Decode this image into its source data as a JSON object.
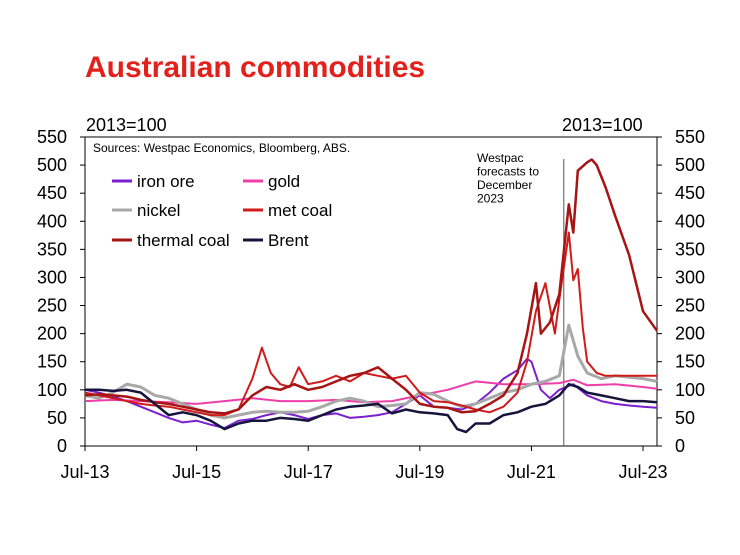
{
  "chart_data": {
    "type": "line",
    "title": "Australian commodities",
    "left_axis_label": "2013=100",
    "right_axis_label": "2013=100",
    "source": "Sources: Westpac Economics, Bloomberg, ABS.",
    "annotation": [
      "Westpac",
      "forecasts to",
      "December",
      "2023"
    ],
    "forecast_start": 2022.08,
    "ylim": [
      0,
      550
    ],
    "yticks": [
      0,
      50,
      100,
      150,
      200,
      250,
      300,
      350,
      400,
      450,
      500,
      550
    ],
    "xlim": [
      2013.5,
      2023.75
    ],
    "xticks": [
      {
        "label": "Jul-13",
        "value": 2013.5
      },
      {
        "label": "Jul-15",
        "value": 2015.5
      },
      {
        "label": "Jul-17",
        "value": 2017.5
      },
      {
        "label": "Jul-19",
        "value": 2019.5
      },
      {
        "label": "Jul-21",
        "value": 2021.5
      },
      {
        "label": "Jul-23",
        "value": 2023.5
      }
    ],
    "grid": false,
    "legend_position": "top-left",
    "series": [
      {
        "name": "iron ore",
        "color": "#7b1fd0",
        "legend_col": 0,
        "legend_row": 0,
        "width": 2,
        "points": [
          [
            2013.5,
            100
          ],
          [
            2013.75,
            95
          ],
          [
            2014.0,
            88
          ],
          [
            2014.25,
            80
          ],
          [
            2014.5,
            70
          ],
          [
            2014.75,
            60
          ],
          [
            2015.0,
            50
          ],
          [
            2015.25,
            42
          ],
          [
            2015.5,
            45
          ],
          [
            2015.75,
            38
          ],
          [
            2016.0,
            32
          ],
          [
            2016.25,
            45
          ],
          [
            2016.5,
            48
          ],
          [
            2016.75,
            55
          ],
          [
            2017.0,
            60
          ],
          [
            2017.25,
            55
          ],
          [
            2017.5,
            48
          ],
          [
            2017.75,
            55
          ],
          [
            2018.0,
            58
          ],
          [
            2018.25,
            50
          ],
          [
            2018.5,
            52
          ],
          [
            2018.75,
            55
          ],
          [
            2019.0,
            60
          ],
          [
            2019.25,
            75
          ],
          [
            2019.5,
            90
          ],
          [
            2019.75,
            70
          ],
          [
            2020.0,
            68
          ],
          [
            2020.25,
            65
          ],
          [
            2020.5,
            75
          ],
          [
            2020.75,
            95
          ],
          [
            2021.0,
            120
          ],
          [
            2021.25,
            135
          ],
          [
            2021.42,
            155
          ],
          [
            2021.5,
            150
          ],
          [
            2021.67,
            100
          ],
          [
            2021.83,
            85
          ],
          [
            2022.0,
            100
          ],
          [
            2022.25,
            110
          ],
          [
            2022.5,
            90
          ],
          [
            2022.75,
            80
          ],
          [
            2023.0,
            75
          ],
          [
            2023.25,
            72
          ],
          [
            2023.5,
            70
          ],
          [
            2023.75,
            68
          ]
        ]
      },
      {
        "name": "gold",
        "color": "#ee3ea8",
        "legend_col": 1,
        "legend_row": 0,
        "width": 2,
        "points": [
          [
            2013.5,
            80
          ],
          [
            2014.0,
            82
          ],
          [
            2014.5,
            80
          ],
          [
            2015.0,
            78
          ],
          [
            2015.5,
            75
          ],
          [
            2016.0,
            80
          ],
          [
            2016.5,
            85
          ],
          [
            2017.0,
            80
          ],
          [
            2017.5,
            80
          ],
          [
            2018.0,
            82
          ],
          [
            2018.5,
            78
          ],
          [
            2019.0,
            80
          ],
          [
            2019.5,
            90
          ],
          [
            2020.0,
            100
          ],
          [
            2020.5,
            115
          ],
          [
            2021.0,
            110
          ],
          [
            2021.5,
            110
          ],
          [
            2022.0,
            112
          ],
          [
            2022.25,
            118
          ],
          [
            2022.5,
            108
          ],
          [
            2023.0,
            110
          ],
          [
            2023.5,
            105
          ],
          [
            2023.75,
            102
          ]
        ]
      },
      {
        "name": "nickel",
        "color": "#a8a8a8",
        "legend_col": 0,
        "legend_row": 1,
        "width": 3,
        "points": [
          [
            2013.5,
            90
          ],
          [
            2013.75,
            85
          ],
          [
            2014.0,
            95
          ],
          [
            2014.25,
            110
          ],
          [
            2014.5,
            105
          ],
          [
            2014.75,
            90
          ],
          [
            2015.0,
            85
          ],
          [
            2015.25,
            75
          ],
          [
            2015.5,
            65
          ],
          [
            2015.75,
            55
          ],
          [
            2016.0,
            50
          ],
          [
            2016.25,
            55
          ],
          [
            2016.5,
            60
          ],
          [
            2016.75,
            62
          ],
          [
            2017.0,
            60
          ],
          [
            2017.25,
            60
          ],
          [
            2017.5,
            62
          ],
          [
            2017.75,
            70
          ],
          [
            2018.0,
            80
          ],
          [
            2018.25,
            85
          ],
          [
            2018.5,
            80
          ],
          [
            2018.75,
            70
          ],
          [
            2019.0,
            72
          ],
          [
            2019.25,
            75
          ],
          [
            2019.5,
            95
          ],
          [
            2019.75,
            92
          ],
          [
            2020.0,
            80
          ],
          [
            2020.25,
            70
          ],
          [
            2020.5,
            75
          ],
          [
            2020.75,
            85
          ],
          [
            2021.0,
            95
          ],
          [
            2021.25,
            100
          ],
          [
            2021.5,
            110
          ],
          [
            2021.75,
            115
          ],
          [
            2022.0,
            125
          ],
          [
            2022.17,
            215
          ],
          [
            2022.33,
            160
          ],
          [
            2022.5,
            130
          ],
          [
            2022.75,
            120
          ],
          [
            2023.0,
            125
          ],
          [
            2023.5,
            120
          ],
          [
            2023.75,
            115
          ]
        ]
      },
      {
        "name": "met coal",
        "color": "#d11b1b",
        "legend_col": 1,
        "legend_row": 1,
        "width": 2,
        "points": [
          [
            2013.5,
            95
          ],
          [
            2013.75,
            90
          ],
          [
            2014.0,
            85
          ],
          [
            2014.25,
            80
          ],
          [
            2014.5,
            75
          ],
          [
            2014.75,
            72
          ],
          [
            2015.0,
            70
          ],
          [
            2015.25,
            65
          ],
          [
            2015.5,
            60
          ],
          [
            2015.75,
            55
          ],
          [
            2016.0,
            55
          ],
          [
            2016.25,
            65
          ],
          [
            2016.5,
            120
          ],
          [
            2016.67,
            175
          ],
          [
            2016.83,
            130
          ],
          [
            2017.0,
            110
          ],
          [
            2017.17,
            105
          ],
          [
            2017.33,
            140
          ],
          [
            2017.5,
            110
          ],
          [
            2017.75,
            115
          ],
          [
            2018.0,
            125
          ],
          [
            2018.25,
            115
          ],
          [
            2018.5,
            130
          ],
          [
            2018.75,
            125
          ],
          [
            2019.0,
            120
          ],
          [
            2019.25,
            125
          ],
          [
            2019.5,
            95
          ],
          [
            2019.75,
            80
          ],
          [
            2020.0,
            78
          ],
          [
            2020.25,
            72
          ],
          [
            2020.5,
            65
          ],
          [
            2020.75,
            60
          ],
          [
            2021.0,
            70
          ],
          [
            2021.25,
            95
          ],
          [
            2021.42,
            150
          ],
          [
            2021.58,
            240
          ],
          [
            2021.75,
            290
          ],
          [
            2021.92,
            200
          ],
          [
            2022.0,
            260
          ],
          [
            2022.17,
            380
          ],
          [
            2022.25,
            295
          ],
          [
            2022.33,
            315
          ],
          [
            2022.42,
            210
          ],
          [
            2022.5,
            150
          ],
          [
            2022.67,
            130
          ],
          [
            2022.83,
            125
          ],
          [
            2023.0,
            125
          ],
          [
            2023.5,
            125
          ],
          [
            2023.75,
            125
          ]
        ]
      },
      {
        "name": "thermal coal",
        "color": "#a61414",
        "legend_col": 0,
        "legend_row": 2,
        "width": 2.5,
        "points": [
          [
            2013.5,
            90
          ],
          [
            2013.75,
            92
          ],
          [
            2014.0,
            90
          ],
          [
            2014.25,
            88
          ],
          [
            2014.5,
            82
          ],
          [
            2014.75,
            78
          ],
          [
            2015.0,
            75
          ],
          [
            2015.25,
            70
          ],
          [
            2015.5,
            65
          ],
          [
            2015.75,
            60
          ],
          [
            2016.0,
            58
          ],
          [
            2016.25,
            65
          ],
          [
            2016.5,
            90
          ],
          [
            2016.75,
            105
          ],
          [
            2017.0,
            100
          ],
          [
            2017.25,
            110
          ],
          [
            2017.5,
            100
          ],
          [
            2017.75,
            105
          ],
          [
            2018.0,
            115
          ],
          [
            2018.25,
            125
          ],
          [
            2018.5,
            130
          ],
          [
            2018.75,
            140
          ],
          [
            2019.0,
            120
          ],
          [
            2019.25,
            100
          ],
          [
            2019.5,
            75
          ],
          [
            2019.75,
            70
          ],
          [
            2020.0,
            68
          ],
          [
            2020.25,
            60
          ],
          [
            2020.5,
            62
          ],
          [
            2020.75,
            75
          ],
          [
            2021.0,
            90
          ],
          [
            2021.25,
            130
          ],
          [
            2021.42,
            200
          ],
          [
            2021.58,
            290
          ],
          [
            2021.67,
            200
          ],
          [
            2021.83,
            220
          ],
          [
            2022.0,
            270
          ],
          [
            2022.17,
            430
          ],
          [
            2022.25,
            380
          ],
          [
            2022.33,
            490
          ],
          [
            2022.5,
            505
          ],
          [
            2022.58,
            510
          ],
          [
            2022.67,
            500
          ],
          [
            2022.83,
            460
          ],
          [
            2023.0,
            410
          ],
          [
            2023.25,
            340
          ],
          [
            2023.5,
            240
          ],
          [
            2023.75,
            205
          ]
        ]
      },
      {
        "name": "Brent",
        "color": "#14143c",
        "legend_col": 1,
        "legend_row": 2,
        "width": 2.5,
        "points": [
          [
            2013.5,
            100
          ],
          [
            2013.75,
            100
          ],
          [
            2014.0,
            98
          ],
          [
            2014.25,
            100
          ],
          [
            2014.5,
            95
          ],
          [
            2014.75,
            75
          ],
          [
            2015.0,
            55
          ],
          [
            2015.25,
            60
          ],
          [
            2015.5,
            55
          ],
          [
            2015.75,
            45
          ],
          [
            2016.0,
            30
          ],
          [
            2016.25,
            40
          ],
          [
            2016.5,
            45
          ],
          [
            2016.75,
            45
          ],
          [
            2017.0,
            50
          ],
          [
            2017.25,
            48
          ],
          [
            2017.5,
            45
          ],
          [
            2017.75,
            55
          ],
          [
            2018.0,
            65
          ],
          [
            2018.25,
            70
          ],
          [
            2018.5,
            72
          ],
          [
            2018.75,
            75
          ],
          [
            2019.0,
            58
          ],
          [
            2019.25,
            65
          ],
          [
            2019.5,
            60
          ],
          [
            2019.75,
            58
          ],
          [
            2020.0,
            55
          ],
          [
            2020.17,
            30
          ],
          [
            2020.33,
            25
          ],
          [
            2020.5,
            40
          ],
          [
            2020.75,
            40
          ],
          [
            2021.0,
            55
          ],
          [
            2021.25,
            60
          ],
          [
            2021.5,
            70
          ],
          [
            2021.75,
            75
          ],
          [
            2022.0,
            90
          ],
          [
            2022.17,
            110
          ],
          [
            2022.33,
            105
          ],
          [
            2022.5,
            95
          ],
          [
            2022.75,
            90
          ],
          [
            2023.0,
            85
          ],
          [
            2023.25,
            80
          ],
          [
            2023.5,
            80
          ],
          [
            2023.75,
            78
          ]
        ]
      }
    ]
  }
}
